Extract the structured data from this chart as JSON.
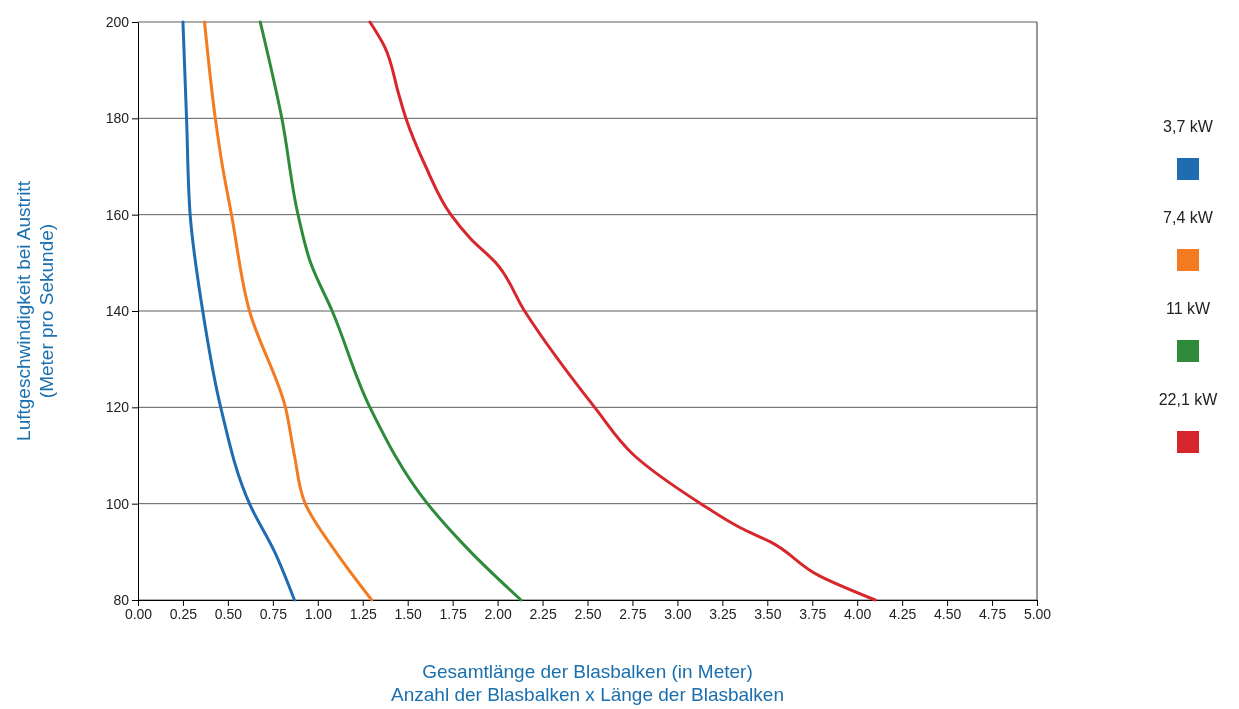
{
  "chart_data": {
    "type": "line",
    "xlabel": "Gesamtlänge der Blasbalken (in Meter)\nAnzahl der Blasbalken x Länge der Blasbalken",
    "ylabel": "Luftgeschwindigkeit bei Austritt\n(Meter pro Sekunde)",
    "xlim": [
      0,
      5
    ],
    "ylim": [
      80,
      200
    ],
    "xticks": [
      {
        "value": 0,
        "label": "0.00"
      },
      {
        "value": 0.25,
        "label": "0.25"
      },
      {
        "value": 0.5,
        "label": "0.50"
      },
      {
        "value": 0.75,
        "label": "0.75"
      },
      {
        "value": 1,
        "label": "1.00"
      },
      {
        "value": 1.25,
        "label": "1.25"
      },
      {
        "value": 1.5,
        "label": "1.50"
      },
      {
        "value": 1.75,
        "label": "1.75"
      },
      {
        "value": 2,
        "label": "2.00"
      },
      {
        "value": 2.25,
        "label": "2.25"
      },
      {
        "value": 2.5,
        "label": "2.50"
      },
      {
        "value": 2.75,
        "label": "2.75"
      },
      {
        "value": 3,
        "label": "3.00"
      },
      {
        "value": 3.25,
        "label": "3.25"
      },
      {
        "value": 3.5,
        "label": "3.50"
      },
      {
        "value": 3.75,
        "label": "3.75"
      },
      {
        "value": 4,
        "label": "4.00"
      },
      {
        "value": 4.25,
        "label": "4.25"
      },
      {
        "value": 4.5,
        "label": "4.50"
      },
      {
        "value": 4.75,
        "label": "4.75"
      },
      {
        "value": 5,
        "label": "5.00"
      }
    ],
    "yticks": [
      80,
      100,
      120,
      140,
      160,
      180,
      200
    ],
    "grid": "y",
    "legend": "right",
    "marker": "none",
    "line_style": "solid",
    "series": [
      {
        "name": "3,7 kW",
        "color": "#1f6db0",
        "x": [
          0.25,
          0.27,
          0.29,
          0.36,
          0.46,
          0.62,
          0.76,
          0.87
        ],
        "values": [
          200,
          180,
          160,
          140,
          120,
          100,
          90,
          80
        ]
      },
      {
        "name": "7,4 kW",
        "color": "#f47b20",
        "x": [
          0.37,
          0.43,
          0.47,
          0.52,
          0.62,
          0.82,
          0.87,
          0.93,
          1.1,
          1.3
        ],
        "values": [
          200,
          180,
          170,
          160,
          140,
          120,
          110,
          100,
          90,
          80
        ]
      },
      {
        "name": "11 kW",
        "color": "#2e8b3a",
        "x": [
          0.68,
          0.8,
          0.89,
          0.96,
          1.08,
          1.29,
          1.61,
          1.85,
          2.13
        ],
        "values": [
          200,
          180,
          160,
          150,
          140,
          120,
          100,
          90,
          80
        ]
      },
      {
        "name": "22,1 kW",
        "color": "#d7262c",
        "x": [
          1.29,
          1.37,
          1.45,
          1.49,
          1.6,
          1.74,
          1.85,
          1.99,
          2.15,
          2.54,
          2.76,
          3.13,
          3.35,
          3.52,
          3.79,
          4.1
        ],
        "values": [
          200,
          195,
          185,
          180,
          170,
          160,
          155,
          150,
          140,
          120,
          110,
          100,
          95,
          92,
          85,
          80
        ]
      }
    ]
  }
}
